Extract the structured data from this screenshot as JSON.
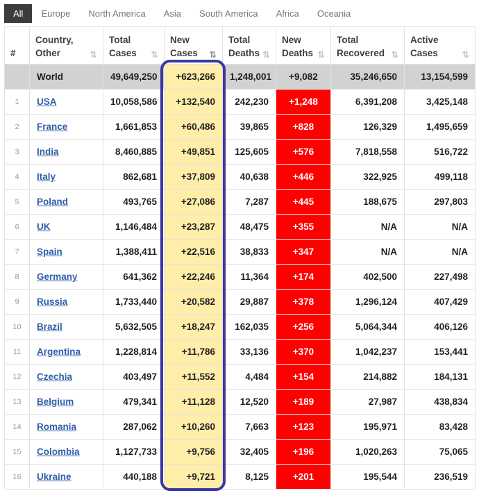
{
  "tabs": {
    "items": [
      {
        "label": "All",
        "active": true
      },
      {
        "label": "Europe",
        "active": false
      },
      {
        "label": "North America",
        "active": false
      },
      {
        "label": "Asia",
        "active": false
      },
      {
        "label": "South America",
        "active": false
      },
      {
        "label": "Africa",
        "active": false
      },
      {
        "label": "Oceania",
        "active": false
      }
    ]
  },
  "table": {
    "headers": [
      {
        "key": "rank",
        "line1": "#",
        "line2": "",
        "sort_icon": ""
      },
      {
        "key": "country",
        "line1": "Country,",
        "line2": "Other",
        "sort_icon": "⇅"
      },
      {
        "key": "total_cases",
        "line1": "Total",
        "line2": "Cases",
        "sort_icon": "⇅"
      },
      {
        "key": "new_cases",
        "line1": "New",
        "line2": "Cases",
        "sort_icon": "⇅"
      },
      {
        "key": "total_deaths",
        "line1": "Total",
        "line2": "Deaths",
        "sort_icon": "⇅"
      },
      {
        "key": "new_deaths",
        "line1": "New",
        "line2": "Deaths",
        "sort_icon": "⇅"
      },
      {
        "key": "total_recovered",
        "line1": "Total",
        "line2": "Recovered",
        "sort_icon": "⇅"
      },
      {
        "key": "active_cases",
        "line1": "Active",
        "line2": "Cases",
        "sort_icon": "⇅"
      }
    ],
    "world_row": {
      "rank": "",
      "country": "World",
      "total_cases": "49,649,250",
      "new_cases": "+623,266",
      "total_deaths": "1,248,001",
      "new_deaths": "+9,082",
      "total_recovered": "35,246,650",
      "active_cases": "13,154,599"
    },
    "rows": [
      {
        "rank": "1",
        "country": "USA",
        "total_cases": "10,058,586",
        "new_cases": "+132,540",
        "total_deaths": "242,230",
        "new_deaths": "+1,248",
        "total_recovered": "6,391,208",
        "active_cases": "3,425,148"
      },
      {
        "rank": "2",
        "country": "France",
        "total_cases": "1,661,853",
        "new_cases": "+60,486",
        "total_deaths": "39,865",
        "new_deaths": "+828",
        "total_recovered": "126,329",
        "active_cases": "1,495,659"
      },
      {
        "rank": "3",
        "country": "India",
        "total_cases": "8,460,885",
        "new_cases": "+49,851",
        "total_deaths": "125,605",
        "new_deaths": "+576",
        "total_recovered": "7,818,558",
        "active_cases": "516,722"
      },
      {
        "rank": "4",
        "country": "Italy",
        "total_cases": "862,681",
        "new_cases": "+37,809",
        "total_deaths": "40,638",
        "new_deaths": "+446",
        "total_recovered": "322,925",
        "active_cases": "499,118"
      },
      {
        "rank": "5",
        "country": "Poland",
        "total_cases": "493,765",
        "new_cases": "+27,086",
        "total_deaths": "7,287",
        "new_deaths": "+445",
        "total_recovered": "188,675",
        "active_cases": "297,803"
      },
      {
        "rank": "6",
        "country": "UK",
        "total_cases": "1,146,484",
        "new_cases": "+23,287",
        "total_deaths": "48,475",
        "new_deaths": "+355",
        "total_recovered": "N/A",
        "active_cases": "N/A"
      },
      {
        "rank": "7",
        "country": "Spain",
        "total_cases": "1,388,411",
        "new_cases": "+22,516",
        "total_deaths": "38,833",
        "new_deaths": "+347",
        "total_recovered": "N/A",
        "active_cases": "N/A"
      },
      {
        "rank": "8",
        "country": "Germany",
        "total_cases": "641,362",
        "new_cases": "+22,246",
        "total_deaths": "11,364",
        "new_deaths": "+174",
        "total_recovered": "402,500",
        "active_cases": "227,498"
      },
      {
        "rank": "9",
        "country": "Russia",
        "total_cases": "1,733,440",
        "new_cases": "+20,582",
        "total_deaths": "29,887",
        "new_deaths": "+378",
        "total_recovered": "1,296,124",
        "active_cases": "407,429"
      },
      {
        "rank": "10",
        "country": "Brazil",
        "total_cases": "5,632,505",
        "new_cases": "+18,247",
        "total_deaths": "162,035",
        "new_deaths": "+256",
        "total_recovered": "5,064,344",
        "active_cases": "406,126"
      },
      {
        "rank": "11",
        "country": "Argentina",
        "total_cases": "1,228,814",
        "new_cases": "+11,786",
        "total_deaths": "33,136",
        "new_deaths": "+370",
        "total_recovered": "1,042,237",
        "active_cases": "153,441"
      },
      {
        "rank": "12",
        "country": "Czechia",
        "total_cases": "403,497",
        "new_cases": "+11,552",
        "total_deaths": "4,484",
        "new_deaths": "+154",
        "total_recovered": "214,882",
        "active_cases": "184,131"
      },
      {
        "rank": "13",
        "country": "Belgium",
        "total_cases": "479,341",
        "new_cases": "+11,128",
        "total_deaths": "12,520",
        "new_deaths": "+189",
        "total_recovered": "27,987",
        "active_cases": "438,834"
      },
      {
        "rank": "14",
        "country": "Romania",
        "total_cases": "287,062",
        "new_cases": "+10,260",
        "total_deaths": "7,663",
        "new_deaths": "+123",
        "total_recovered": "195,971",
        "active_cases": "83,428"
      },
      {
        "rank": "15",
        "country": "Colombia",
        "total_cases": "1,127,733",
        "new_cases": "+9,756",
        "total_deaths": "32,405",
        "new_deaths": "+196",
        "total_recovered": "1,020,263",
        "active_cases": "75,065"
      },
      {
        "rank": "16",
        "country": "Ukraine",
        "total_cases": "440,188",
        "new_cases": "+9,721",
        "total_deaths": "8,125",
        "new_deaths": "+201",
        "total_recovered": "195,544",
        "active_cases": "236,519"
      }
    ]
  },
  "colors": {
    "new_cases_bg": "#FFEEAA",
    "new_deaths_bg": "#FF0000",
    "world_row_bg": "#D2D2D2",
    "active_tab_bg": "#3C3C3C",
    "link_color": "#305FA8",
    "highlight_outline": "#3B38A0"
  }
}
